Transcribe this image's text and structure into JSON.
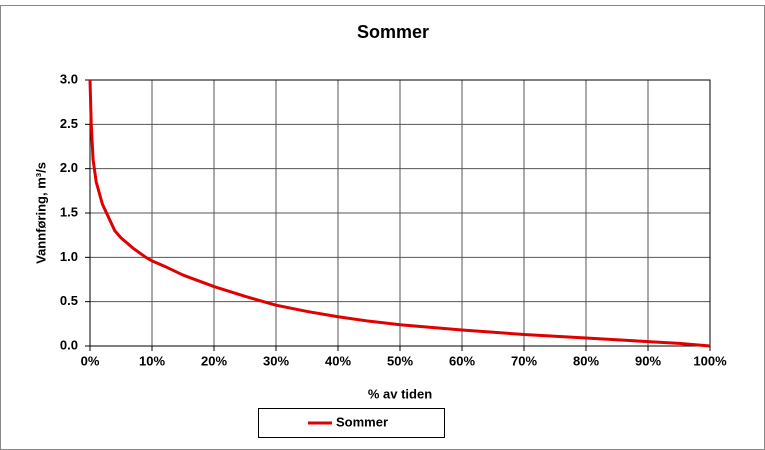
{
  "chart_data": {
    "type": "line",
    "title": "Sommer",
    "xlabel": "% av tiden",
    "ylabel": "Vannføring, m³/s",
    "x": [
      0,
      0.2,
      0.5,
      1,
      2,
      3,
      4,
      5,
      7,
      9,
      10,
      12,
      15,
      20,
      25,
      30,
      35,
      40,
      45,
      50,
      60,
      70,
      80,
      90,
      95,
      100
    ],
    "series": [
      {
        "name": "Sommer",
        "color": "#e00000",
        "values": [
          3.0,
          2.5,
          2.1,
          1.85,
          1.6,
          1.45,
          1.3,
          1.22,
          1.1,
          1.0,
          0.96,
          0.9,
          0.8,
          0.67,
          0.56,
          0.46,
          0.39,
          0.33,
          0.28,
          0.24,
          0.18,
          0.13,
          0.09,
          0.05,
          0.03,
          0.0
        ]
      }
    ],
    "xlim": [
      0,
      100
    ],
    "xticks": [
      {
        "value": 0,
        "label": "0%"
      },
      {
        "value": 10,
        "label": "10%"
      },
      {
        "value": 20,
        "label": "20%"
      },
      {
        "value": 30,
        "label": "30%"
      },
      {
        "value": 40,
        "label": "40%"
      },
      {
        "value": 50,
        "label": "50%"
      },
      {
        "value": 60,
        "label": "60%"
      },
      {
        "value": 70,
        "label": "70%"
      },
      {
        "value": 80,
        "label": "80%"
      },
      {
        "value": 90,
        "label": "90%"
      },
      {
        "value": 100,
        "label": "100%"
      }
    ],
    "ylim": [
      0,
      3
    ],
    "yticks": [
      {
        "value": 0,
        "label": "0.0"
      },
      0.5,
      {
        "value": 1,
        "label": "1.0"
      },
      1.5,
      {
        "value": 2,
        "label": "2.0"
      },
      2.5,
      {
        "value": 3,
        "label": "3.0"
      }
    ],
    "grid": true
  }
}
